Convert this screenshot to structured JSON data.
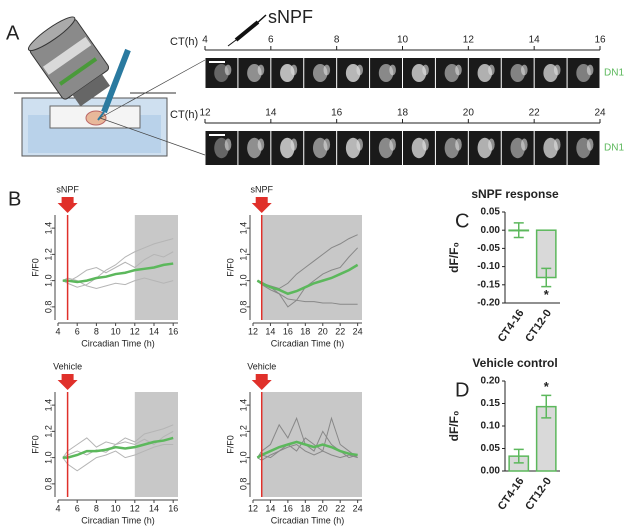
{
  "panel_a": {
    "label": "A",
    "drug": "sNPF",
    "rows": [
      {
        "axis_label": "CT(h)",
        "ticks": [
          4,
          6,
          8,
          10,
          12,
          14,
          16
        ],
        "cell_label": "DN1"
      },
      {
        "axis_label": "CT(h)",
        "ticks": [
          12,
          14,
          16,
          18,
          20,
          22,
          24
        ],
        "cell_label": "DN1"
      }
    ]
  },
  "panel_b": {
    "label": "B"
  },
  "chart_data": [
    {
      "type": "line",
      "annotation": "sNPF",
      "xlabel": "Circadian Time (h)",
      "ylabel": "F/F0",
      "xlim": [
        4,
        16.5
      ],
      "ylim": [
        0.7,
        1.5
      ],
      "xticks": [
        4,
        6,
        8,
        10,
        12,
        14,
        16
      ],
      "yticks": [
        0.8,
        {
          "value": 1.0,
          "label": "1.0"
        },
        1.2,
        1.4
      ],
      "shaded_region": [
        12,
        16.5
      ],
      "stimulus_x": 5,
      "stimulus_color": "#e0302a",
      "x": [
        4.5,
        5,
        6,
        7,
        8,
        9,
        10,
        11,
        12,
        13,
        14,
        15,
        16
      ],
      "series": [
        {
          "color": "#b5b5b5",
          "values": [
            1.0,
            0.98,
            0.95,
            0.97,
            1.02,
            1.08,
            1.12,
            1.18,
            1.22,
            1.25,
            1.28,
            1.3,
            1.32
          ]
        },
        {
          "color": "#b5b5b5",
          "values": [
            1.0,
            1.02,
            1.0,
            0.96,
            0.94,
            0.96,
            0.98,
            0.97,
            1.0,
            1.02,
            1.0,
            0.98,
            1.0
          ]
        },
        {
          "color": "#b5b5b5",
          "values": [
            1.0,
            0.99,
            1.03,
            1.08,
            1.1,
            1.06,
            1.1,
            1.14,
            1.1,
            1.16,
            1.2,
            1.18,
            1.22
          ]
        },
        {
          "color": "#5cb85c",
          "values": [
            1.0,
            1.0,
            0.99,
            1.0,
            1.02,
            1.03,
            1.05,
            1.06,
            1.08,
            1.09,
            1.1,
            1.12,
            1.13
          ]
        }
      ]
    },
    {
      "type": "line",
      "annotation": "sNPF",
      "xlabel": "Circadian Time (h)",
      "ylabel": "F/F0",
      "xlim": [
        12,
        24.5
      ],
      "ylim": [
        0.7,
        1.5
      ],
      "xticks": [
        12,
        14,
        16,
        18,
        20,
        22,
        24
      ],
      "yticks": [
        0.8,
        {
          "value": 1.0,
          "label": "1.0"
        },
        1.2,
        1.4
      ],
      "shaded_region": [
        13,
        24.5
      ],
      "stimulus_x": 13,
      "stimulus_color": "#e0302a",
      "x": [
        12.5,
        13,
        14,
        15,
        16,
        17,
        18,
        19,
        20,
        21,
        22,
        23,
        24
      ],
      "series": [
        {
          "color": "#888888",
          "values": [
            1.0,
            0.98,
            0.96,
            0.94,
            0.98,
            1.05,
            1.1,
            1.15,
            1.2,
            1.25,
            1.28,
            1.32,
            1.35
          ]
        },
        {
          "color": "#888888",
          "values": [
            1.0,
            0.97,
            0.93,
            0.9,
            0.86,
            0.85,
            0.84,
            0.84,
            0.83,
            0.83,
            0.82,
            0.82,
            0.82
          ]
        },
        {
          "color": "#888888",
          "values": [
            1.0,
            0.99,
            0.95,
            0.9,
            0.8,
            0.85,
            0.95,
            1.0,
            1.05,
            1.08,
            1.1,
            1.18,
            1.25
          ]
        },
        {
          "color": "#5cb85c",
          "values": [
            1.0,
            0.98,
            0.95,
            0.93,
            0.9,
            0.92,
            0.95,
            0.98,
            1.0,
            1.02,
            1.05,
            1.08,
            1.12
          ]
        }
      ]
    },
    {
      "type": "line",
      "annotation": "Vehicle",
      "xlabel": "Circadian Time (h)",
      "ylabel": "F/F0",
      "xlim": [
        4,
        16.5
      ],
      "ylim": [
        0.7,
        1.5
      ],
      "xticks": [
        4,
        6,
        8,
        10,
        12,
        14,
        16
      ],
      "yticks": [
        0.8,
        {
          "value": 1.0,
          "label": "1.0"
        },
        1.2,
        1.4
      ],
      "shaded_region": [
        12,
        16.5
      ],
      "stimulus_x": 5,
      "stimulus_color": "#e0302a",
      "x": [
        4.5,
        5,
        6,
        7,
        8,
        9,
        10,
        11,
        12,
        13,
        14,
        15,
        16
      ],
      "series": [
        {
          "color": "#b5b5b5",
          "values": [
            1.0,
            1.05,
            1.1,
            1.15,
            1.08,
            1.12,
            1.1,
            1.15,
            1.12,
            1.18,
            1.2,
            1.22,
            1.25
          ]
        },
        {
          "color": "#b5b5b5",
          "values": [
            1.0,
            0.95,
            0.9,
            0.95,
            1.0,
            1.02,
            1.05,
            1.0,
            1.02,
            1.05,
            1.08,
            1.1,
            1.1
          ]
        },
        {
          "color": "#b5b5b5",
          "values": [
            1.0,
            1.02,
            1.05,
            1.02,
            1.06,
            1.04,
            1.1,
            1.12,
            1.1,
            1.14,
            1.1,
            1.16,
            1.2
          ]
        },
        {
          "color": "#5cb85c",
          "values": [
            1.0,
            1.0,
            1.02,
            1.05,
            1.05,
            1.06,
            1.08,
            1.07,
            1.08,
            1.1,
            1.12,
            1.13,
            1.15
          ]
        }
      ]
    },
    {
      "type": "line",
      "annotation": "Vehicle",
      "xlabel": "Circadian Time (h)",
      "ylabel": "F/F0",
      "xlim": [
        12,
        24.5
      ],
      "ylim": [
        0.7,
        1.5
      ],
      "xticks": [
        12,
        14,
        16,
        18,
        20,
        22,
        24
      ],
      "yticks": [
        0.8,
        {
          "value": 1.0,
          "label": "1.0"
        },
        1.2,
        1.4
      ],
      "shaded_region": [
        13,
        24.5
      ],
      "stimulus_x": 13,
      "stimulus_color": "#e0302a",
      "x": [
        12.5,
        13,
        14,
        15,
        16,
        17,
        18,
        19,
        20,
        21,
        22,
        23,
        24
      ],
      "series": [
        {
          "color": "#888888",
          "values": [
            1.0,
            1.05,
            1.1,
            1.25,
            1.15,
            1.3,
            1.1,
            1.05,
            1.2,
            1.1,
            1.05,
            1.0,
            1.02
          ]
        },
        {
          "color": "#888888",
          "values": [
            1.0,
            0.98,
            1.02,
            1.05,
            1.1,
            1.05,
            1.15,
            1.1,
            1.05,
            1.3,
            1.1,
            1.05,
            1.0
          ]
        },
        {
          "color": "#888888",
          "values": [
            1.0,
            1.02,
            1.0,
            1.05,
            1.08,
            1.1,
            1.05,
            1.02,
            1.05,
            1.02,
            1.0,
            1.02,
            1.0
          ]
        },
        {
          "color": "#5cb85c",
          "values": [
            1.0,
            1.02,
            1.05,
            1.08,
            1.1,
            1.12,
            1.1,
            1.08,
            1.1,
            1.08,
            1.05,
            1.03,
            1.02
          ]
        }
      ]
    },
    {
      "type": "bar",
      "panel_label": "C",
      "title": "sNPF response",
      "ylabel": "dF/F₀",
      "categories": [
        "CT4-16",
        "CT12-0"
      ],
      "values": [
        0.0,
        -0.13
      ],
      "errors": [
        0.02,
        0.025
      ],
      "color": "#5cb85c",
      "fill": "#d9d9d9",
      "ylim": [
        -0.2,
        0.05
      ],
      "yticks": [
        0.05,
        {
          "value": 0.0,
          "label": "0.00"
        },
        -0.05,
        {
          "value": -0.1,
          "label": "-0.10"
        },
        -0.15,
        {
          "value": -0.2,
          "label": "-0.20"
        }
      ],
      "annotation": "*",
      "annotation_category": "CT12-0"
    },
    {
      "type": "bar",
      "panel_label": "D",
      "title": "Vehicle control",
      "ylabel": "dF/F₀",
      "categories": [
        "CT4-16",
        "CT12-0"
      ],
      "values": [
        0.033,
        0.143
      ],
      "errors": [
        0.015,
        0.025
      ],
      "color": "#5cb85c",
      "fill": "#d9d9d9",
      "ylim": [
        0,
        0.2
      ],
      "yticks": [
        {
          "value": 0.0,
          "label": "0.00"
        },
        0.05,
        {
          "value": 0.1,
          "label": "0.10"
        },
        0.15,
        {
          "value": 0.2,
          "label": "0.20"
        }
      ],
      "annotation": "*",
      "annotation_category": "CT12-0"
    }
  ]
}
